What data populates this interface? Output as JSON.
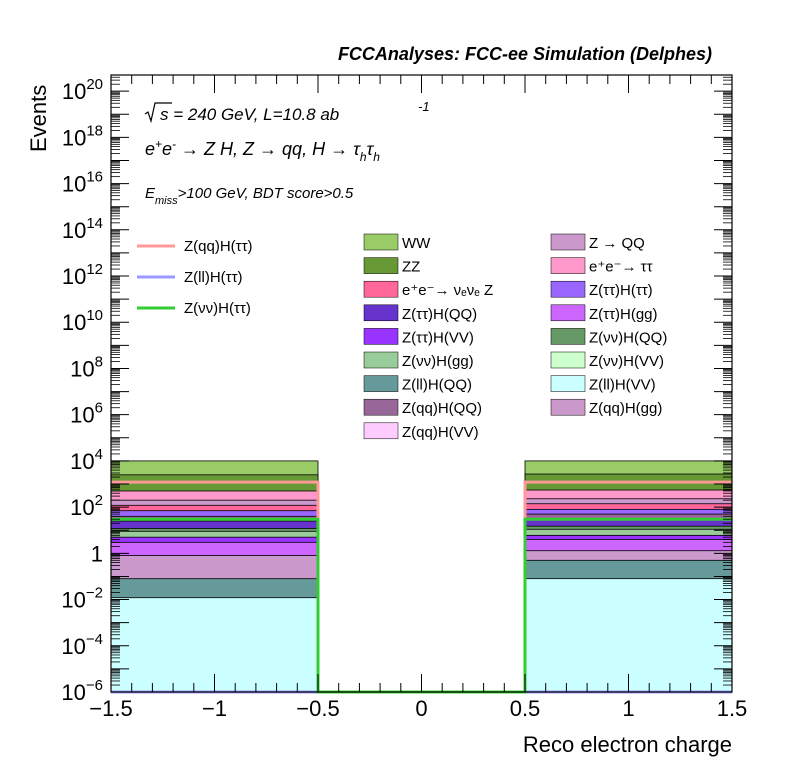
{
  "header": "FCCAnalyses: FCC-ee Simulation (Delphes)",
  "annotations": {
    "sqrt_s": "s = 240 GeV, L=10.8 ab",
    "lumi_exp": "-1",
    "process": "e e  → Z H, Z  → qq, H  → τ τ",
    "cut_main": "E",
    "cut_sub": "miss",
    "cut_rest": ">100 GeV, BDT score>0.5"
  },
  "chart_data": {
    "type": "bar",
    "title": "",
    "xlabel": "Reco electron charge",
    "ylabel": "Events",
    "log_y": true,
    "xlim": [
      -1.5,
      1.5
    ],
    "ylim": [
      1e-06,
      5e+20
    ],
    "x_ticks": [
      "−1.5",
      "−1",
      "−0.5",
      "0",
      "0.5",
      "1",
      "1.5"
    ],
    "y_ticks": [
      {
        "base": "10",
        "exp": "−6",
        "value": 1e-06
      },
      {
        "base": "10",
        "exp": "−4",
        "value": 0.0001
      },
      {
        "base": "10",
        "exp": "−2",
        "value": 0.01
      },
      {
        "base": "1",
        "exp": "",
        "value": 1
      },
      {
        "base": "10",
        "exp": "2",
        "value": 100.0
      },
      {
        "base": "10",
        "exp": "4",
        "value": 10000.0
      },
      {
        "base": "10",
        "exp": "6",
        "value": 1000000.0
      },
      {
        "base": "10",
        "exp": "8",
        "value": 100000000.0
      },
      {
        "base": "10",
        "exp": "10",
        "value": 10000000000.0
      },
      {
        "base": "10",
        "exp": "12",
        "value": 1000000000000.0
      },
      {
        "base": "10",
        "exp": "14",
        "value": 100000000000000.0
      },
      {
        "base": "10",
        "exp": "16",
        "value": 1e+16
      },
      {
        "base": "10",
        "exp": "18",
        "value": 1e+18
      },
      {
        "base": "10",
        "exp": "20",
        "value": 1e+20
      }
    ],
    "bins": [
      [
        -1.5,
        -0.5
      ],
      [
        -0.5,
        0.5
      ],
      [
        0.5,
        1.5
      ]
    ],
    "stack_top_values": [
      {
        "name": "Z(ll)H(VV)",
        "color": "#ccffff",
        "values": [
          0.012,
          1e-06,
          0.08
        ]
      },
      {
        "name": "Z(ll)H(QQ)",
        "color": "#669999",
        "values": [
          0.08,
          1e-06,
          0.5
        ]
      },
      {
        "name": "Z(qq)H(gg)",
        "color": "#cc99cc",
        "values": [
          0.8,
          1e-06,
          1.3
        ]
      },
      {
        "name": "Z(ττ)H(gg)",
        "color": "#cc66ff",
        "values": [
          3,
          1e-06,
          4
        ]
      },
      {
        "name": "Z(ττ)H(VV)",
        "color": "#9933ff",
        "values": [
          5,
          1e-06,
          6
        ]
      },
      {
        "name": "Z(νν)H(gg)",
        "color": "#99cc99",
        "values": [
          9,
          1e-06,
          11
        ]
      },
      {
        "name": "Z(νν)H(QQ)",
        "color": "#669966",
        "values": [
          12,
          1e-06,
          15
        ]
      },
      {
        "name": "Z(ττ)H(QQ)",
        "color": "#6633cc",
        "values": [
          25,
          1e-06,
          30
        ]
      },
      {
        "name": "Z(qq)H(QQ)",
        "color": "#996699",
        "values": [
          40,
          1e-06,
          50
        ]
      },
      {
        "name": "Z(ττ)H(ττ)",
        "color": "#9966ff",
        "values": [
          70,
          1e-06,
          80
        ]
      },
      {
        "name": "e⁺e⁻→νₑνₑ Z",
        "color": "#ff6699",
        "values": [
          120,
          1e-06,
          140
        ]
      },
      {
        "name": "Z → QQ",
        "color": "#cc99cc",
        "values": [
          200,
          1e-06,
          230
        ]
      },
      {
        "name": "e⁺e⁻→ττ",
        "color": "#ff99cc",
        "values": [
          500,
          1e-06,
          550
        ]
      },
      {
        "name": "ZZ",
        "color": "#669933",
        "values": [
          2500,
          1e-06,
          2700
        ]
      },
      {
        "name": "WW",
        "color": "#99cc66",
        "values": [
          10000,
          1e-06,
          10000
        ]
      }
    ],
    "signal_lines": [
      {
        "name": "Z(qq)H(ττ)",
        "color": "#ff9999",
        "values": [
          1200,
          1e-06,
          1200
        ],
        "low_edge": 50
      },
      {
        "name": "Z(ll)H(ττ)",
        "color": "#9999ff",
        "values": [
          1e-06,
          1e-06,
          1e-06
        ]
      },
      {
        "name": "Z(νν)H(ττ)",
        "color": "#33cc33",
        "values": [
          30,
          1e-06,
          30
        ]
      }
    ],
    "legend_signals": [
      {
        "label": "Z(qq)H(ττ)",
        "color": "#ff9999"
      },
      {
        "label": "Z(ll)H(ττ)",
        "color": "#9999ff"
      },
      {
        "label": "Z(νν)H(ττ)",
        "color": "#33cc33"
      }
    ],
    "legend_col1": [
      {
        "label": "WW",
        "color": "#99cc66"
      },
      {
        "label": "ZZ",
        "color": "#669933"
      },
      {
        "label": "e⁺e⁻→ νₑνₑ Z",
        "color": "#ff6699"
      },
      {
        "label": "Z(ττ)H(QQ)",
        "color": "#6633cc"
      },
      {
        "label": "Z(ττ)H(VV)",
        "color": "#9933ff"
      },
      {
        "label": "Z(νν)H(gg)",
        "color": "#99cc99"
      },
      {
        "label": "Z(ll)H(QQ)",
        "color": "#669999"
      },
      {
        "label": "Z(qq)H(QQ)",
        "color": "#996699"
      },
      {
        "label": "Z(qq)H(VV)",
        "color": "#ffccff"
      }
    ],
    "legend_col2": [
      {
        "label": "Z → QQ",
        "color": "#cc99cc"
      },
      {
        "label": "e⁺e⁻→ ττ",
        "color": "#ff99cc"
      },
      {
        "label": "Z(ττ)H(ττ)",
        "color": "#9966ff"
      },
      {
        "label": "Z(ττ)H(gg)",
        "color": "#cc66ff"
      },
      {
        "label": "Z(νν)H(QQ)",
        "color": "#669966"
      },
      {
        "label": "Z(νν)H(VV)",
        "color": "#ccffcc"
      },
      {
        "label": "Z(ll)H(VV)",
        "color": "#ccffff"
      },
      {
        "label": "Z(qq)H(gg)",
        "color": "#cc99cc"
      }
    ]
  }
}
